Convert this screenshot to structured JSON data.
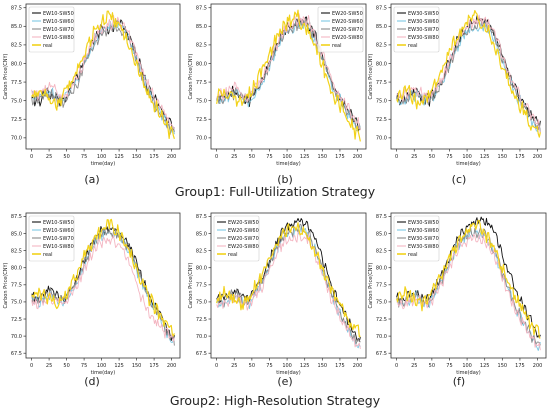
{
  "group_titles": [
    "Group1: Full-Utilization Strategy",
    "Group2: High-Resolution Strategy"
  ],
  "colors": {
    "SW50": "#111111",
    "SW60": "#7ec8e3",
    "SW70": "#8a8a8a",
    "SW80": "#f4b6c2",
    "real": "#f2d21b"
  },
  "chart_data": [
    {
      "type": "line",
      "caption": "(a)",
      "group": 1,
      "xlabel": "time(day)",
      "ylabel": "Carbon Price(CNY)",
      "xlim": [
        -8,
        212
      ],
      "ylim": [
        68.5,
        88.0
      ],
      "xticks": [
        0,
        25,
        50,
        75,
        100,
        125,
        150,
        175,
        200
      ],
      "yticks": [
        70.0,
        72.5,
        75.0,
        77.5,
        80.0,
        82.5,
        85.0,
        87.5
      ],
      "legend_position": "top-left",
      "series": [
        {
          "name": "EW10-SW50",
          "key": "SW50",
          "values": [
            75.3,
            74.9,
            75.8,
            76.1,
            75.2,
            75.0,
            76.8,
            77.9,
            80.1,
            82.0,
            83.8,
            84.9,
            84.5,
            85.6,
            85.2,
            83.6,
            81.2,
            78.8,
            76.4,
            75.0,
            73.6,
            72.2,
            71.0
          ]
        },
        {
          "name": "EW10-SW60",
          "key": "SW60",
          "values": [
            75.8,
            75.5,
            76.2,
            76.5,
            75.6,
            75.2,
            76.5,
            77.6,
            79.8,
            81.8,
            83.5,
            84.6,
            84.8,
            85.2,
            84.8,
            83.2,
            80.8,
            78.4,
            76.0,
            74.6,
            73.2,
            71.6,
            70.6
          ]
        },
        {
          "name": "EW10-SW70",
          "key": "SW70",
          "values": [
            75.0,
            75.2,
            75.5,
            75.9,
            75.0,
            74.8,
            76.2,
            77.4,
            79.5,
            81.5,
            83.2,
            84.2,
            84.4,
            85.0,
            84.5,
            83.0,
            80.5,
            78.0,
            75.8,
            74.3,
            73.0,
            71.3,
            70.4
          ]
        },
        {
          "name": "EW10-SW80",
          "key": "SW80",
          "values": [
            76.2,
            75.8,
            76.6,
            77.0,
            76.0,
            75.6,
            76.9,
            78.0,
            80.2,
            82.2,
            83.9,
            85.0,
            85.3,
            85.7,
            85.3,
            83.9,
            81.4,
            79.0,
            76.7,
            75.3,
            73.9,
            72.4,
            71.4
          ]
        },
        {
          "name": "real",
          "key": "real",
          "values": [
            75.5,
            76.4,
            76.0,
            75.0,
            74.6,
            75.8,
            77.5,
            79.2,
            81.4,
            83.2,
            84.6,
            85.8,
            86.6,
            85.5,
            84.2,
            82.5,
            80.0,
            77.6,
            75.6,
            74.2,
            72.5,
            71.0,
            70.5
          ]
        }
      ]
    },
    {
      "type": "line",
      "caption": "(b)",
      "group": 1,
      "xlabel": "time(day)",
      "ylabel": "Carbon Price(CNY)",
      "xlim": [
        -8,
        212
      ],
      "ylim": [
        68.5,
        88.0
      ],
      "xticks": [
        0,
        25,
        50,
        75,
        100,
        125,
        150,
        175,
        200
      ],
      "yticks": [
        70.0,
        72.5,
        75.0,
        77.5,
        80.0,
        82.5,
        85.0,
        87.5
      ],
      "legend_position": "top-right",
      "series": [
        {
          "name": "EW20-SW50",
          "key": "SW50",
          "values": [
            75.6,
            75.2,
            75.9,
            76.3,
            75.5,
            75.1,
            76.6,
            77.8,
            80.0,
            82.1,
            83.9,
            85.0,
            85.4,
            85.8,
            85.3,
            83.8,
            81.3,
            78.9,
            76.6,
            75.1,
            73.7,
            72.2,
            71.2
          ]
        },
        {
          "name": "EW20-SW60",
          "key": "SW60",
          "values": [
            75.2,
            74.9,
            75.6,
            76.0,
            75.1,
            74.9,
            76.3,
            77.5,
            79.7,
            81.7,
            83.5,
            84.6,
            85.0,
            85.3,
            84.9,
            83.3,
            80.9,
            78.5,
            76.2,
            74.7,
            73.3,
            71.8,
            70.8
          ]
        },
        {
          "name": "EW20-SW70",
          "key": "SW70",
          "values": [
            75.4,
            75.1,
            75.8,
            76.2,
            75.3,
            75.0,
            76.4,
            77.6,
            79.8,
            81.9,
            83.6,
            84.8,
            85.1,
            85.5,
            85.0,
            83.5,
            81.0,
            78.6,
            76.3,
            74.8,
            73.4,
            71.9,
            70.9
          ]
        },
        {
          "name": "EW20-SW80",
          "key": "SW80",
          "values": [
            76.0,
            75.7,
            76.4,
            76.8,
            75.9,
            75.5,
            76.9,
            78.1,
            80.3,
            82.3,
            84.1,
            85.2,
            85.6,
            86.0,
            85.6,
            84.0,
            81.6,
            79.2,
            76.9,
            75.4,
            74.0,
            72.5,
            71.5
          ]
        },
        {
          "name": "real",
          "key": "real",
          "values": [
            75.5,
            76.4,
            76.0,
            75.0,
            74.6,
            75.8,
            77.5,
            79.2,
            81.4,
            83.2,
            84.6,
            85.8,
            86.6,
            85.5,
            84.2,
            82.5,
            80.0,
            77.6,
            75.6,
            74.2,
            72.5,
            71.0,
            70.5
          ]
        }
      ]
    },
    {
      "type": "line",
      "caption": "(c)",
      "group": 1,
      "xlabel": "time(day)",
      "ylabel": "Carbon Price(CNY)",
      "xlim": [
        -8,
        212
      ],
      "ylim": [
        68.5,
        88.0
      ],
      "xticks": [
        0,
        25,
        50,
        75,
        100,
        125,
        150,
        175,
        200
      ],
      "yticks": [
        70.0,
        72.5,
        75.0,
        77.5,
        80.0,
        82.5,
        85.0,
        87.5
      ],
      "legend_position": "top-left",
      "series": [
        {
          "name": "EW30-SW50",
          "key": "SW50",
          "values": [
            75.4,
            75.0,
            75.8,
            76.2,
            75.3,
            75.0,
            76.6,
            77.9,
            80.2,
            82.4,
            84.2,
            85.3,
            85.6,
            85.9,
            85.4,
            83.9,
            81.4,
            79.0,
            76.7,
            75.2,
            73.8,
            72.3,
            71.3
          ]
        },
        {
          "name": "EW30-SW60",
          "key": "SW60",
          "values": [
            75.1,
            74.8,
            75.5,
            75.9,
            75.0,
            74.8,
            76.2,
            77.4,
            79.6,
            81.7,
            83.4,
            84.5,
            84.9,
            85.2,
            84.8,
            83.2,
            80.8,
            78.4,
            76.1,
            74.6,
            73.2,
            71.7,
            70.7
          ]
        },
        {
          "name": "EW30-SW70",
          "key": "SW70",
          "values": [
            75.3,
            75.0,
            75.7,
            76.1,
            75.2,
            74.9,
            76.4,
            77.6,
            79.8,
            81.9,
            83.7,
            84.8,
            85.1,
            85.5,
            85.0,
            83.5,
            81.0,
            78.6,
            76.3,
            74.8,
            73.4,
            71.9,
            70.9
          ]
        },
        {
          "name": "EW30-SW80",
          "key": "SW80",
          "values": [
            75.9,
            75.6,
            76.3,
            76.7,
            75.8,
            75.4,
            76.8,
            78.0,
            80.2,
            82.3,
            84.0,
            85.1,
            85.5,
            85.9,
            85.5,
            83.9,
            81.5,
            79.1,
            76.8,
            75.3,
            73.9,
            72.4,
            71.4
          ]
        },
        {
          "name": "real",
          "key": "real",
          "values": [
            75.5,
            76.4,
            76.0,
            75.0,
            74.6,
            75.8,
            77.5,
            79.2,
            81.4,
            83.2,
            84.6,
            85.8,
            86.6,
            85.5,
            84.2,
            82.5,
            80.0,
            77.6,
            75.6,
            74.2,
            72.5,
            71.0,
            70.5
          ]
        }
      ]
    },
    {
      "type": "line",
      "caption": "(d)",
      "group": 2,
      "xlabel": "time(day)",
      "ylabel": "Carbon Price(CNY)",
      "xlim": [
        -8,
        212
      ],
      "ylim": [
        66.8,
        88.0
      ],
      "xticks": [
        0,
        25,
        50,
        75,
        100,
        125,
        150,
        175,
        200
      ],
      "yticks": [
        67.5,
        70.0,
        72.5,
        75.0,
        77.5,
        80.0,
        82.5,
        85.0,
        87.5
      ],
      "legend_position": "top-left",
      "series": [
        {
          "name": "EW10-SW50",
          "key": "SW50",
          "values": [
            75.8,
            75.4,
            76.3,
            76.8,
            75.6,
            75.4,
            77.0,
            78.4,
            80.8,
            83.0,
            84.6,
            85.5,
            85.8,
            85.4,
            84.6,
            83.0,
            80.6,
            78.2,
            76.0,
            74.3,
            72.6,
            70.6,
            69.4
          ]
        },
        {
          "name": "EW10-SW60",
          "key": "SW60",
          "values": [
            75.2,
            75.0,
            75.6,
            76.1,
            75.1,
            74.9,
            76.5,
            77.8,
            80.2,
            82.3,
            83.9,
            84.8,
            85.1,
            84.8,
            83.9,
            82.3,
            79.9,
            77.6,
            75.4,
            73.7,
            72.0,
            70.0,
            68.8
          ]
        },
        {
          "name": "EW10-SW70",
          "key": "SW70",
          "values": [
            75.5,
            75.2,
            75.9,
            76.4,
            75.3,
            75.1,
            76.7,
            78.0,
            80.4,
            82.5,
            84.1,
            85.0,
            85.3,
            85.0,
            84.1,
            82.5,
            80.1,
            77.8,
            75.6,
            73.9,
            72.2,
            70.2,
            69.0
          ]
        },
        {
          "name": "EW10-SW80",
          "key": "SW80",
          "values": [
            74.8,
            74.6,
            75.1,
            75.6,
            74.8,
            74.7,
            76.1,
            77.4,
            79.6,
            81.6,
            83.1,
            83.9,
            84.2,
            83.8,
            82.6,
            80.6,
            77.8,
            75.2,
            73.4,
            72.1,
            71.0,
            70.2,
            69.6
          ]
        },
        {
          "name": "real",
          "key": "real",
          "values": [
            75.5,
            76.4,
            76.0,
            75.0,
            74.6,
            75.8,
            77.5,
            79.2,
            81.4,
            83.2,
            84.6,
            85.8,
            86.6,
            85.5,
            84.2,
            82.5,
            80.0,
            77.6,
            75.6,
            74.2,
            72.5,
            71.0,
            70.5
          ]
        }
      ]
    },
    {
      "type": "line",
      "caption": "(e)",
      "group": 2,
      "xlabel": "time(day)",
      "ylabel": "Carbon Price(CNY)",
      "xlim": [
        -8,
        212
      ],
      "ylim": [
        66.8,
        88.0
      ],
      "xticks": [
        0,
        25,
        50,
        75,
        100,
        125,
        150,
        175,
        200
      ],
      "yticks": [
        67.5,
        70.0,
        72.5,
        75.0,
        77.5,
        80.0,
        82.5,
        85.0,
        87.5
      ],
      "legend_position": "top-left",
      "series": [
        {
          "name": "EW20-SW50",
          "key": "SW50",
          "values": [
            75.8,
            75.5,
            76.2,
            76.7,
            75.7,
            75.5,
            77.1,
            78.5,
            80.9,
            83.2,
            85.0,
            86.1,
            86.6,
            86.9,
            86.2,
            84.3,
            81.5,
            78.7,
            76.2,
            74.3,
            72.4,
            70.4,
            69.4
          ]
        },
        {
          "name": "EW20-SW60",
          "key": "SW60",
          "values": [
            75.1,
            74.8,
            75.5,
            76.0,
            75.0,
            74.8,
            76.4,
            77.8,
            80.1,
            82.3,
            84.0,
            85.0,
            85.4,
            85.6,
            84.8,
            82.8,
            80.0,
            77.2,
            74.8,
            72.8,
            71.0,
            69.2,
            68.4
          ]
        },
        {
          "name": "EW20-SW70",
          "key": "SW70",
          "values": [
            75.3,
            75.0,
            75.8,
            76.2,
            75.2,
            75.0,
            76.6,
            78.0,
            80.3,
            82.5,
            84.2,
            85.2,
            85.6,
            85.8,
            85.0,
            83.0,
            80.2,
            77.4,
            75.0,
            73.0,
            71.2,
            69.4,
            68.6
          ]
        },
        {
          "name": "EW20-SW80",
          "key": "SW80",
          "values": [
            74.9,
            74.6,
            75.2,
            75.7,
            74.8,
            74.6,
            76.1,
            77.4,
            79.7,
            81.8,
            83.4,
            84.3,
            84.6,
            84.7,
            83.9,
            82.0,
            79.3,
            76.6,
            74.3,
            72.4,
            70.7,
            69.0,
            68.2
          ]
        },
        {
          "name": "real",
          "key": "real",
          "values": [
            75.5,
            76.4,
            76.0,
            75.0,
            74.6,
            75.8,
            77.5,
            79.2,
            81.4,
            83.2,
            84.6,
            85.8,
            86.6,
            85.5,
            84.2,
            82.5,
            80.0,
            77.6,
            75.6,
            74.2,
            72.5,
            71.0,
            70.5
          ]
        }
      ]
    },
    {
      "type": "line",
      "caption": "(f)",
      "group": 2,
      "xlabel": "time(day)",
      "ylabel": "Carbon Price(CNY)",
      "xlim": [
        -8,
        212
      ],
      "ylim": [
        66.8,
        88.0
      ],
      "xticks": [
        0,
        25,
        50,
        75,
        100,
        125,
        150,
        175,
        200
      ],
      "yticks": [
        67.5,
        70.0,
        72.5,
        75.0,
        77.5,
        80.0,
        82.5,
        85.0,
        87.5
      ],
      "legend_position": "top-left",
      "series": [
        {
          "name": "EW30-SW50",
          "key": "SW50",
          "values": [
            75.6,
            75.2,
            75.9,
            76.4,
            75.4,
            75.3,
            77.3,
            79.0,
            81.5,
            83.8,
            85.4,
            86.3,
            86.8,
            87.0,
            86.4,
            84.8,
            82.2,
            79.6,
            77.0,
            75.0,
            73.0,
            71.0,
            70.0
          ]
        },
        {
          "name": "EW30-SW60",
          "key": "SW60",
          "values": [
            75.0,
            74.7,
            75.4,
            75.8,
            74.9,
            74.8,
            76.6,
            78.2,
            80.6,
            82.7,
            84.1,
            84.8,
            85.0,
            84.9,
            84.0,
            82.0,
            79.3,
            76.7,
            74.4,
            72.5,
            70.8,
            69.0,
            68.2
          ]
        },
        {
          "name": "EW30-SW70",
          "key": "SW70",
          "values": [
            75.2,
            74.9,
            75.6,
            76.0,
            75.1,
            75.0,
            76.8,
            78.4,
            80.8,
            82.9,
            84.3,
            85.0,
            85.2,
            85.1,
            84.2,
            82.2,
            79.5,
            76.9,
            74.6,
            72.7,
            71.0,
            69.2,
            68.4
          ]
        },
        {
          "name": "EW30-SW80",
          "key": "SW80",
          "values": [
            74.8,
            74.5,
            75.1,
            75.5,
            74.7,
            74.6,
            76.3,
            77.8,
            80.1,
            82.1,
            83.5,
            84.2,
            84.4,
            84.2,
            83.3,
            81.4,
            78.8,
            76.3,
            74.1,
            72.3,
            70.7,
            69.0,
            68.3
          ]
        },
        {
          "name": "real",
          "key": "real",
          "values": [
            75.5,
            76.4,
            76.0,
            75.0,
            74.6,
            75.8,
            77.5,
            79.2,
            81.4,
            83.2,
            84.6,
            85.8,
            86.6,
            85.5,
            84.2,
            82.5,
            80.0,
            77.6,
            75.6,
            74.2,
            72.5,
            71.0,
            70.5
          ]
        }
      ]
    }
  ]
}
